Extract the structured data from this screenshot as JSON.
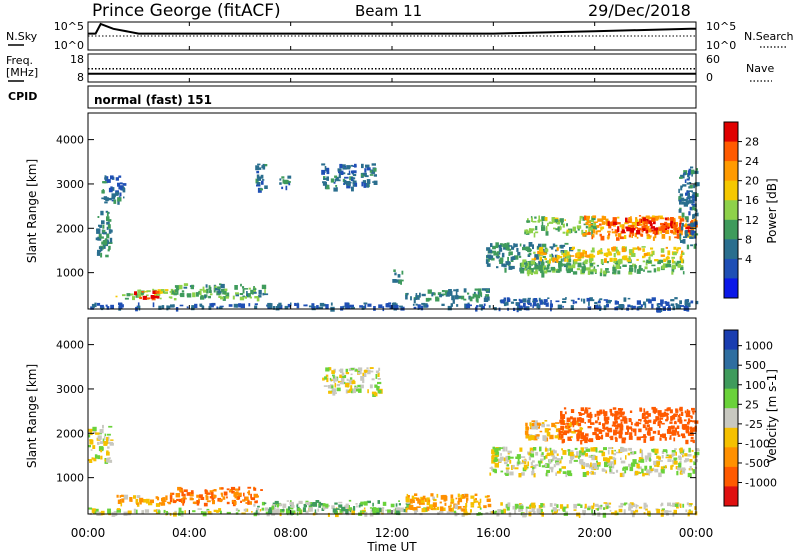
{
  "header": {
    "station": "Prince George (fitACF)",
    "beam": "Beam 11",
    "date": "29/Dec/2018"
  },
  "panels": {
    "noise": {
      "left_label": "N.Sky",
      "right_label": "N.Search",
      "ticks_left": [
        "10^5",
        "10^0"
      ],
      "ticks_right": [
        "10^5",
        "10^0"
      ]
    },
    "freq": {
      "left_label_1": "Freq.",
      "left_label_2": "[MHz]",
      "right_label": "Nave",
      "ticks_left": [
        "18",
        "8"
      ],
      "ticks_right": [
        "60",
        "0"
      ]
    },
    "cpid": {
      "label": "CPID",
      "program": "normal (fast) 151"
    }
  },
  "axes": {
    "ylabel": "Slant Range [km]",
    "xlabel": "Time UT",
    "x_ticks": [
      "00:00",
      "04:00",
      "08:00",
      "12:00",
      "16:00",
      "20:00",
      "00:00"
    ],
    "y_ticks": [
      "1000",
      "2000",
      "3000",
      "4000"
    ]
  },
  "colorbars": {
    "power": {
      "label": "Power [dB]",
      "ticks": [
        "28",
        "24",
        "20",
        "16",
        "12",
        "8",
        "4"
      ],
      "colors": [
        "#e00000",
        "#ff5a00",
        "#ff9a00",
        "#f5c800",
        "#8ed14a",
        "#3f9b5c",
        "#2a6e8e",
        "#1f4fb5",
        "#0b18e8"
      ]
    },
    "velocity": {
      "label": "Velocity [m s-1]",
      "ticks": [
        "1000",
        "500",
        "100",
        "25",
        "-25",
        "-100",
        "-500",
        "-1000"
      ],
      "colors": [
        "#1a3db0",
        "#2f6ea0",
        "#3f9b5c",
        "#6ad23a",
        "#c8c8c0",
        "#f5c000",
        "#ff9000",
        "#ff5a00",
        "#e01010"
      ]
    }
  },
  "chart_data": [
    {
      "type": "line",
      "title": "Prince George (fitACF)",
      "series": [
        {
          "name": "N.Sky",
          "x": [
            0,
            0.3,
            0.5,
            1,
            2,
            4,
            8,
            12,
            16,
            20,
            23.8,
            24
          ],
          "y": [
            3,
            3,
            5,
            4,
            3,
            3,
            3,
            3,
            3,
            3.5,
            4,
            4
          ]
        },
        {
          "name": "N.Search",
          "x": [
            0,
            24
          ],
          "y": [
            2.5,
            2.5
          ]
        }
      ],
      "xlim": [
        0,
        24
      ]
    },
    {
      "type": "line",
      "series": [
        {
          "name": "Freq.",
          "x": [
            0,
            24
          ],
          "y": [
            10.4,
            10.4
          ]
        },
        {
          "name": "Nave",
          "x": [
            0,
            24
          ],
          "y": [
            28,
            28
          ]
        }
      ],
      "xlim": [
        0,
        24
      ]
    },
    {
      "type": "heatmap",
      "title": "Power",
      "xlabel": "Time UT",
      "ylabel": "Slant Range [km]",
      "xlim": [
        0,
        24
      ],
      "ylim": [
        180,
        4600
      ],
      "zlim": [
        0,
        30
      ],
      "regions": [
        {
          "t0": 0.3,
          "t1": 0.9,
          "r0": 1400,
          "r1": 2400,
          "z": 10
        },
        {
          "t0": 0.5,
          "t1": 1.4,
          "r0": 2600,
          "r1": 3200,
          "z": 8
        },
        {
          "t0": 0.0,
          "t1": 16.2,
          "r0": 220,
          "r1": 330,
          "z": 7
        },
        {
          "t0": 1.0,
          "t1": 3.4,
          "r0": 420,
          "r1": 640,
          "z": 15
        },
        {
          "t0": 1.8,
          "t1": 2.8,
          "r0": 440,
          "r1": 600,
          "z": 27
        },
        {
          "t0": 3.4,
          "t1": 7.0,
          "r0": 450,
          "r1": 760,
          "z": 12
        },
        {
          "t0": 6.6,
          "t1": 7.0,
          "r0": 2900,
          "r1": 3500,
          "z": 8
        },
        {
          "t0": 7.5,
          "t1": 8.0,
          "r0": 2900,
          "r1": 3200,
          "z": 9
        },
        {
          "t0": 9.2,
          "t1": 10.5,
          "r0": 2900,
          "r1": 3500,
          "z": 8
        },
        {
          "t0": 10.7,
          "t1": 11.3,
          "r0": 3000,
          "r1": 3500,
          "z": 8
        },
        {
          "t0": 12.0,
          "t1": 12.4,
          "r0": 800,
          "r1": 1100,
          "z": 10
        },
        {
          "t0": 12.5,
          "t1": 15.8,
          "r0": 400,
          "r1": 650,
          "z": 10
        },
        {
          "t0": 15.7,
          "t1": 19.0,
          "r0": 1100,
          "r1": 1700,
          "z": 10
        },
        {
          "t0": 16.2,
          "t1": 24.0,
          "r0": 200,
          "r1": 450,
          "z": 7
        },
        {
          "t0": 17.0,
          "t1": 23.5,
          "r0": 1000,
          "r1": 1300,
          "z": 13
        },
        {
          "t0": 17.5,
          "t1": 23.5,
          "r0": 1300,
          "r1": 1600,
          "z": 18
        },
        {
          "t0": 17.2,
          "t1": 20.0,
          "r0": 1900,
          "r1": 2300,
          "z": 14
        },
        {
          "t0": 19.5,
          "t1": 24.0,
          "r0": 1800,
          "r1": 2300,
          "z": 22
        },
        {
          "t0": 20.5,
          "t1": 23.8,
          "r0": 1950,
          "r1": 2250,
          "z": 27
        },
        {
          "t0": 23.3,
          "t1": 24.0,
          "r0": 1600,
          "r1": 3400,
          "z": 8
        }
      ]
    },
    {
      "type": "heatmap",
      "title": "Velocity",
      "xlabel": "Time UT",
      "ylabel": "Slant Range [km]",
      "xlim": [
        0,
        24
      ],
      "ylim": [
        180,
        4600
      ],
      "zlim": [
        -1000,
        1000
      ],
      "regions": [
        {
          "t0": 0.0,
          "t1": 0.9,
          "r0": 1400,
          "r1": 2200,
          "z": 0
        },
        {
          "t0": 0.0,
          "t1": 16.2,
          "r0": 200,
          "r1": 330,
          "z": 0
        },
        {
          "t0": 1.0,
          "t1": 3.2,
          "r0": 420,
          "r1": 620,
          "z": -70
        },
        {
          "t0": 3.2,
          "t1": 6.8,
          "r0": 430,
          "r1": 800,
          "z": -300
        },
        {
          "t0": 6.5,
          "t1": 12.8,
          "r0": 250,
          "r1": 500,
          "z": 50
        },
        {
          "t0": 9.2,
          "t1": 11.5,
          "r0": 2900,
          "r1": 3500,
          "z": 0
        },
        {
          "t0": 12.5,
          "t1": 15.8,
          "r0": 300,
          "r1": 650,
          "z": -80
        },
        {
          "t0": 15.8,
          "t1": 24.0,
          "r0": 1100,
          "r1": 1700,
          "z": 0
        },
        {
          "t0": 17.2,
          "t1": 19.5,
          "r0": 1900,
          "r1": 2300,
          "z": -60
        },
        {
          "t0": 18.5,
          "t1": 24.0,
          "r0": 1850,
          "r1": 2600,
          "z": -600
        },
        {
          "t0": 16.2,
          "t1": 24.0,
          "r0": 200,
          "r1": 450,
          "z": 0
        }
      ]
    }
  ]
}
